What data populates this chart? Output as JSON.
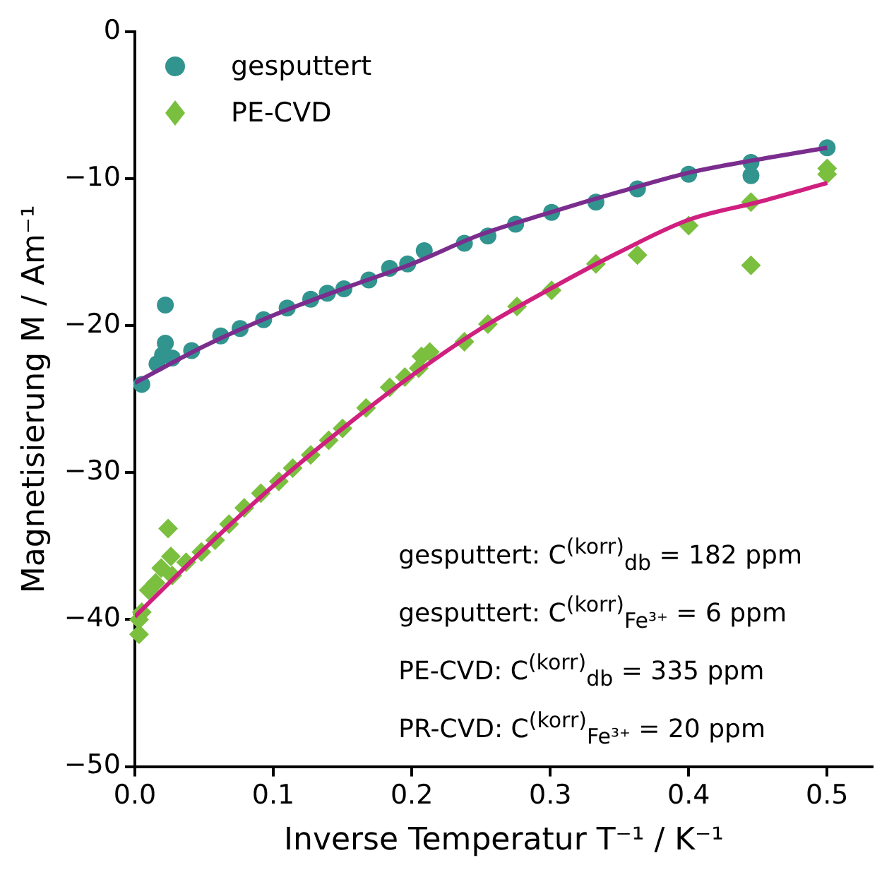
{
  "chart_data": {
    "type": "scatter",
    "xlabel": "Inverse Temperatur T⁻¹ / K⁻¹",
    "ylabel": "Magnetisierung M / Am⁻¹",
    "xlim": [
      0,
      0.533
    ],
    "ylim": [
      -50,
      0
    ],
    "xticks": [
      {
        "value": 0,
        "label": "0.0"
      },
      0.1,
      0.2,
      0.3,
      0.4,
      0.5
    ],
    "yticks": [
      {
        "value": -50,
        "label": "−50"
      },
      {
        "value": -40,
        "label": "−40"
      },
      {
        "value": -30,
        "label": "−30"
      },
      {
        "value": -20,
        "label": "−20"
      },
      {
        "value": -10,
        "label": "−10"
      },
      0
    ],
    "grid": false,
    "legend": "top left",
    "series": [
      {
        "name": "gesputtert",
        "type": "scatter",
        "marker": "circle",
        "color": "#32948f",
        "x": [
          0.005,
          0.016,
          0.02,
          0.022,
          0.022,
          0.027,
          0.041,
          0.062,
          0.076,
          0.093,
          0.11,
          0.127,
          0.139,
          0.151,
          0.169,
          0.184,
          0.197,
          0.209,
          0.238,
          0.255,
          0.275,
          0.301,
          0.333,
          0.363,
          0.4,
          0.445,
          0.445,
          0.5
        ],
        "values": [
          -24.0,
          -22.6,
          -22.0,
          -18.6,
          -21.2,
          -22.2,
          -21.7,
          -20.7,
          -20.2,
          -19.6,
          -18.8,
          -18.2,
          -17.8,
          -17.5,
          -16.9,
          -16.1,
          -15.8,
          -14.9,
          -14.4,
          -13.9,
          -13.1,
          -12.3,
          -11.6,
          -10.7,
          -9.7,
          -8.9,
          -9.8,
          -7.9
        ]
      },
      {
        "name": "PE-CVD",
        "type": "scatter",
        "marker": "diamond",
        "color": "#7bbf3f",
        "x": [
          0.003,
          0.003,
          0.005,
          0.01,
          0.015,
          0.019,
          0.024,
          0.026,
          0.027,
          0.037,
          0.048,
          0.058,
          0.068,
          0.079,
          0.091,
          0.104,
          0.114,
          0.127,
          0.14,
          0.15,
          0.167,
          0.184,
          0.195,
          0.205,
          0.207,
          0.213,
          0.238,
          0.255,
          0.276,
          0.301,
          0.333,
          0.363,
          0.4,
          0.445,
          0.445,
          0.5,
          0.5
        ],
        "values": [
          -40.0,
          -41.0,
          -39.5,
          -38.0,
          -37.5,
          -36.5,
          -33.8,
          -35.7,
          -37.0,
          -36.1,
          -35.4,
          -34.6,
          -33.5,
          -32.4,
          -31.4,
          -30.6,
          -29.7,
          -28.8,
          -27.8,
          -27.0,
          -25.6,
          -24.2,
          -23.5,
          -22.9,
          -22.1,
          -21.8,
          -21.1,
          -19.9,
          -18.7,
          -17.6,
          -15.8,
          -15.2,
          -13.2,
          -11.6,
          -15.9,
          -9.3,
          -9.7
        ]
      },
      {
        "type": "line",
        "marker": "none",
        "color": "#7b2d8e",
        "x": [
          0,
          0.05,
          0.1,
          0.15,
          0.2,
          0.25,
          0.3,
          0.35,
          0.4,
          0.45,
          0.5
        ],
        "values": [
          -23.9,
          -21.4,
          -19.3,
          -17.5,
          -15.8,
          -13.8,
          -12.3,
          -10.9,
          -9.6,
          -8.7,
          -7.9
        ]
      },
      {
        "type": "line",
        "marker": "none",
        "color": "#d0207f",
        "x": [
          0,
          0.05,
          0.1,
          0.15,
          0.2,
          0.25,
          0.3,
          0.35,
          0.4,
          0.45,
          0.5
        ],
        "values": [
          -39.8,
          -35.2,
          -30.9,
          -27.0,
          -23.4,
          -20.2,
          -17.5,
          -15.0,
          -12.8,
          -11.6,
          -10.3
        ]
      }
    ],
    "annotations": [
      "gesputtert: C$^{(korr)}$$_{db}$ = 182 ppm",
      "gesputtert: C$^{(korr)}$$_{Fe³⁺}$ = 6 ppm",
      "PE-CVD: C$^{(korr)}$$_{db}$ = 335 ppm",
      "PR-CVD: C$^{(korr)}$$_{Fe³⁺}$ = 20 ppm"
    ]
  }
}
